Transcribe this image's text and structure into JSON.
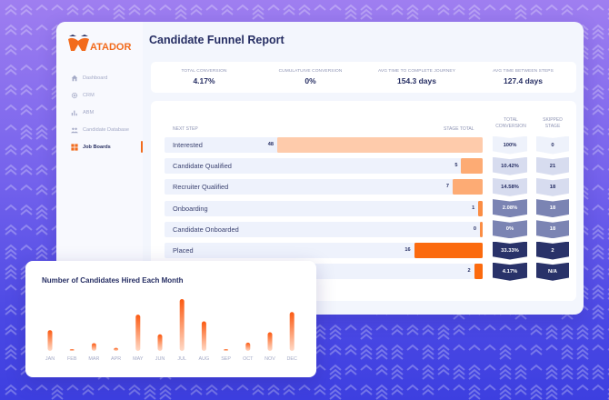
{
  "app": {
    "brand": "MATADOR",
    "page_title": "Candidate Funnel Report"
  },
  "sidebar": {
    "items": [
      {
        "label": "Dashboard",
        "icon": "home-icon",
        "active": false
      },
      {
        "label": "CRM",
        "icon": "gear-icon",
        "active": false
      },
      {
        "label": "ABM",
        "icon": "bar-chart-icon",
        "active": false
      },
      {
        "label": "Candidate Database",
        "icon": "users-icon",
        "active": false
      },
      {
        "label": "Job Boards",
        "icon": "grid-icon",
        "active": true
      }
    ]
  },
  "stats": [
    {
      "label": "TOTAL CONVERSION",
      "value": "4.17%"
    },
    {
      "label": "CUMULATUIVE CONVERSION",
      "value": "0%"
    },
    {
      "label": "AVG TIME TO COMPLETE JOURNEY",
      "value": "154.3 days"
    },
    {
      "label": "AVG TIME BETWEEN STEPS",
      "value": "127.4 days"
    }
  ],
  "funnel": {
    "headers": {
      "next_step": "NEXT STEP",
      "stage_total": "STAGE TOTAL",
      "total_conversion": "TOTAL CONVERSION",
      "skipped_stage": "SKIPPED STAGE"
    },
    "max_total": 48,
    "rows": [
      {
        "label": "Interested",
        "total": 48,
        "total_label": "48",
        "conversion": "100%",
        "skipped": "0",
        "bar_color": "#fecbab",
        "badge_bg": "#eef2fb",
        "badge_fg": "#262e63"
      },
      {
        "label": "Candidate Qualified",
        "total": 5,
        "total_label": "5",
        "conversion": "10.42%",
        "skipped": "21",
        "bar_color": "#fdab74",
        "badge_bg": "#d7dcef",
        "badge_fg": "#262e63"
      },
      {
        "label": "Recruiter Qualified",
        "total": 7,
        "total_label": "7",
        "conversion": "14.58%",
        "skipped": "18",
        "bar_color": "#fdab74",
        "badge_bg": "#d7dcef",
        "badge_fg": "#262e63"
      },
      {
        "label": "Onboarding",
        "total": 1,
        "total_label": "1",
        "conversion": "2.08%",
        "skipped": "18",
        "bar_color": "#fb8d44",
        "badge_bg": "#7b84b3",
        "badge_fg": "#ffffff"
      },
      {
        "label": "Candidate Onboarded",
        "total": 0,
        "total_label": "0",
        "conversion": "0%",
        "skipped": "18",
        "bar_color": "#fb8d44",
        "badge_bg": "#7b84b3",
        "badge_fg": "#ffffff"
      },
      {
        "label": "Placed",
        "total": 16,
        "total_label": "16",
        "conversion": "33.33%",
        "skipped": "2",
        "bar_color": "#fb6a0e",
        "badge_bg": "#293269",
        "badge_fg": "#ffffff"
      },
      {
        "label": "",
        "total": 2,
        "total_label": "2",
        "conversion": "4.17%",
        "skipped": "N/A",
        "bar_color": "#fb6a0e",
        "badge_bg": "#293269",
        "badge_fg": "#ffffff"
      }
    ]
  },
  "chart_data": {
    "type": "bar",
    "title": "Number of Candidates Hired Each Month",
    "xlabel": "",
    "ylabel": "",
    "categories": [
      "JAN",
      "FEB",
      "MAR",
      "APR",
      "MAY",
      "JUN",
      "JUL",
      "AUG",
      "SEP",
      "OCT",
      "NOV",
      "DEC"
    ],
    "values": [
      40,
      2,
      15,
      6,
      70,
      32,
      100,
      57,
      2,
      16,
      36,
      75
    ],
    "ylim": [
      0,
      100
    ],
    "grid": false,
    "legend": "none",
    "bar_color_top": "#fb5a12",
    "bar_color_bottom": "#ffd9c6"
  }
}
